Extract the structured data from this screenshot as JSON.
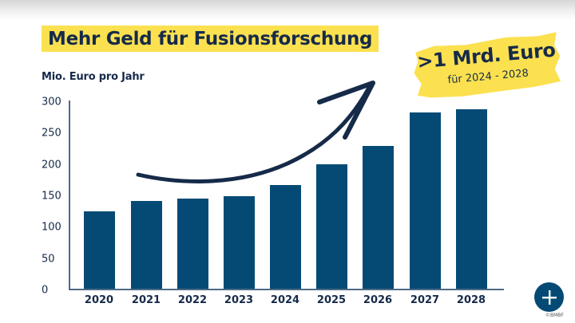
{
  "title": "Mehr Geld für Fusionsforschung",
  "badge": {
    "main": ">1 Mrd. Euro",
    "sub": "für 2024 - 2028"
  },
  "y_axis_title": "Mio. Euro pro Jahr",
  "y_ticks": [
    "300",
    "250",
    "200",
    "150",
    "100",
    "50",
    "0"
  ],
  "x_labels": [
    "2020",
    "2021",
    "2022",
    "2023",
    "2024",
    "2025",
    "2026",
    "2027",
    "2028"
  ],
  "credit": "©BMBF",
  "colors": {
    "bar": "#044a74",
    "highlight": "#fbe150",
    "text": "#162a49"
  },
  "chart_data": {
    "type": "bar",
    "title": "Mehr Geld für Fusionsforschung",
    "subtitle": "Mio. Euro pro Jahr",
    "annotation": ">1 Mrd. Euro für 2024 - 2028",
    "categories": [
      "2020",
      "2021",
      "2022",
      "2023",
      "2024",
      "2025",
      "2026",
      "2027",
      "2028"
    ],
    "values": [
      123,
      140,
      144,
      147,
      165,
      198,
      228,
      281,
      286
    ],
    "xlabel": "",
    "ylabel": "Mio. Euro pro Jahr",
    "ylim": [
      0,
      300
    ],
    "yticks": [
      0,
      50,
      100,
      150,
      200,
      250,
      300
    ],
    "grid": false,
    "legend": null
  }
}
